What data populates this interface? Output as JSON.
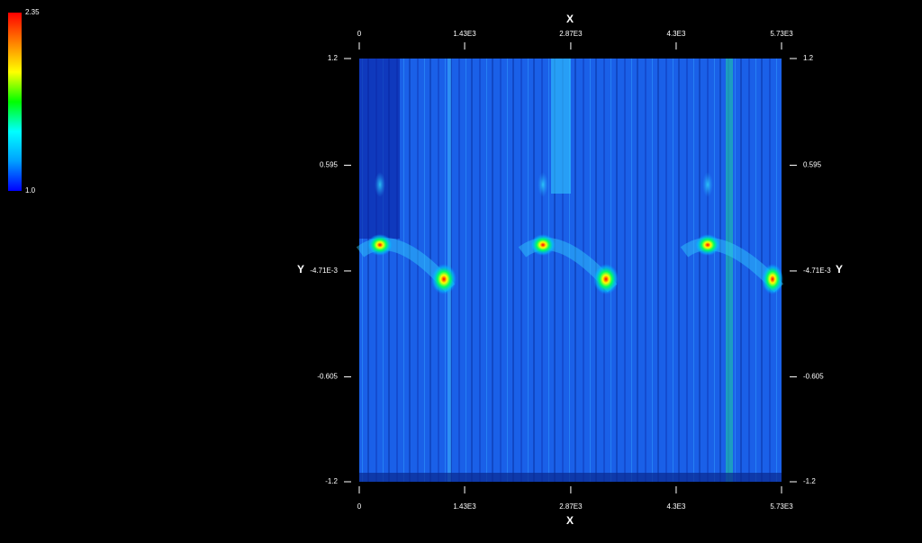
{
  "chart_data": {
    "type": "heatmap",
    "x_label": "X",
    "y_label": "Y",
    "xlim": [
      0,
      5730
    ],
    "xticks": [
      0,
      {
        "value": 1430,
        "label": "1.43E3"
      },
      {
        "value": 2870,
        "label": "2.87E3"
      },
      {
        "value": 4300,
        "label": "4.3E3"
      },
      {
        "value": 5730,
        "label": "5.73E3"
      }
    ],
    "ylim": [
      -1.2,
      1.2
    ],
    "yticks": [
      1.2,
      0.595,
      {
        "value": -0.00471,
        "label": "-4.71E-3"
      },
      -0.605,
      -1.2
    ],
    "clim": [
      1,
      2.35
    ],
    "cticks": [
      {
        "value": 1,
        "label": "1.0"
      },
      2.35
    ],
    "colormap": [
      "#0000ff",
      "#00a0ff",
      "#00ffff",
      "#00ff00",
      "#ffff00",
      "#ff8000",
      "#ff0000"
    ]
  }
}
